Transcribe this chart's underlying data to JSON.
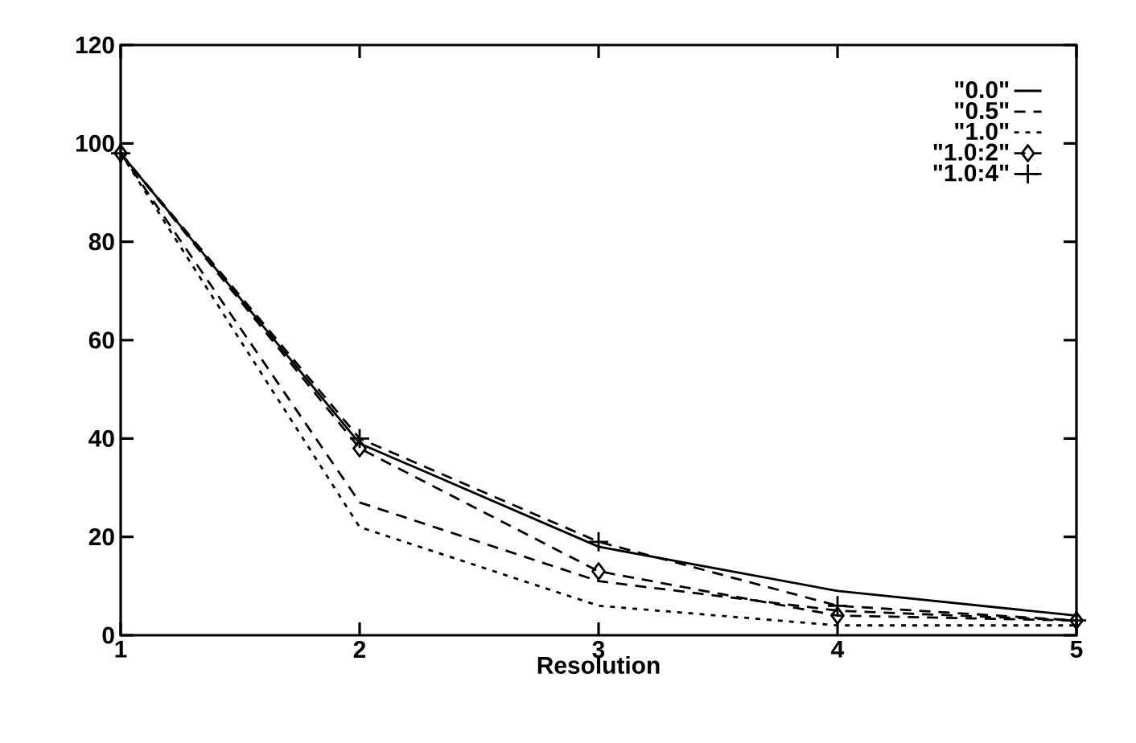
{
  "chart_data": {
    "type": "line",
    "xlabel": "Resolution",
    "x": [
      1,
      2,
      3,
      4,
      5
    ],
    "series": [
      {
        "name": "\"0.0\"",
        "color": "#000000",
        "line_style": "solid",
        "values": [
          98,
          39,
          18,
          9,
          4
        ]
      },
      {
        "name": "\"0.5\"",
        "color": "#000000",
        "line_style": "dashed",
        "values": [
          98,
          27,
          11,
          5,
          3
        ]
      },
      {
        "name": "\"1.0\"",
        "color": "#000000",
        "line_style": "dotted",
        "values": [
          98,
          22,
          6,
          2,
          2
        ]
      },
      {
        "name": "\"1.0:2\"",
        "color": "#000000",
        "line_style": "dashed",
        "marker": "diamond",
        "values": [
          98,
          38,
          13,
          4,
          3
        ]
      },
      {
        "name": "\"1.0:4\"",
        "color": "#000000",
        "line_style": "dashed",
        "marker": "cross",
        "values": [
          98,
          40,
          19,
          6,
          3
        ]
      }
    ],
    "xlim": [
      1,
      5
    ],
    "ylim": [
      0,
      120
    ],
    "xticks": [
      1,
      2,
      3,
      4,
      5
    ],
    "yticks": [
      0,
      20,
      40,
      60,
      80,
      100,
      120
    ],
    "legend": "top right",
    "grid": false,
    "marker": "none"
  }
}
